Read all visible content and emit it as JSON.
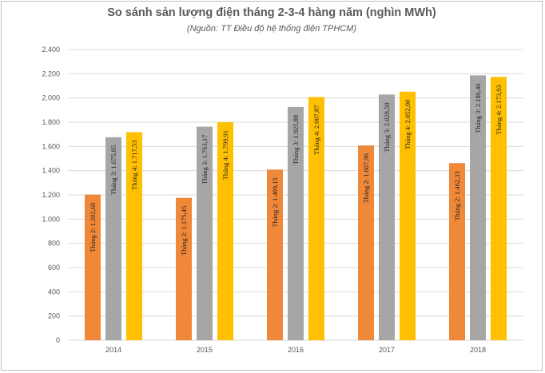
{
  "chart_data": {
    "type": "bar",
    "title": "So sánh sản lượng điện tháng 2-3-4 hàng năm (nghìn MWh)",
    "subtitle": "(Nguồn: TT Điều độ hệ thống điện TPHCM)",
    "categories": [
      "2014",
      "2015",
      "2016",
      "2017",
      "2018"
    ],
    "ylim": [
      0,
      2400
    ],
    "yticks": [
      0,
      200,
      400,
      600,
      800,
      1000,
      1200,
      1400,
      1600,
      1800,
      2000,
      2200,
      2400
    ],
    "ytick_labels": [
      "0",
      "200",
      "400",
      "600",
      "800",
      "1.000",
      "1.200",
      "1.400",
      "1.600",
      "1.800",
      "2.000",
      "2.200",
      "2.400"
    ],
    "grid": true,
    "series": [
      {
        "name": "Tháng 2",
        "color": "#f0883a",
        "values": [
          1202.6,
          1175.45,
          1409.15,
          1607.96,
          1462.33
        ],
        "labels": [
          "Tháng 2: 1.202,60",
          "Tháng 2: 1.175,45",
          "Tháng 2: 1.409,15",
          "Tháng 2: 1.607,96",
          "Tháng 2: 1.462,33"
        ]
      },
      {
        "name": "Tháng 3",
        "color": "#a6a6a6",
        "values": [
          1675.85,
          1763.17,
          1925.88,
          2028.5,
          2186.46
        ],
        "labels": [
          "Tháng 3: 1.675,85",
          "Tháng 3: 1.763,17",
          "Tháng 3: 1.925,88",
          "Tháng 3: 2.028,50",
          "Tháng 3: 2.186,46"
        ]
      },
      {
        "name": "Tháng 4",
        "color": "#ffc000",
        "values": [
          1717.53,
          1799.91,
          2007.87,
          2052.0,
          2173.93
        ],
        "labels": [
          "Tháng 4: 1.717,53",
          "Tháng 4: 1.799,91",
          "Tháng 4: 2.007,87",
          "Tháng 4: 2.052,00",
          "Tháng 4: 2.173,93"
        ]
      }
    ],
    "gridline_color": "#d9d9d9"
  }
}
